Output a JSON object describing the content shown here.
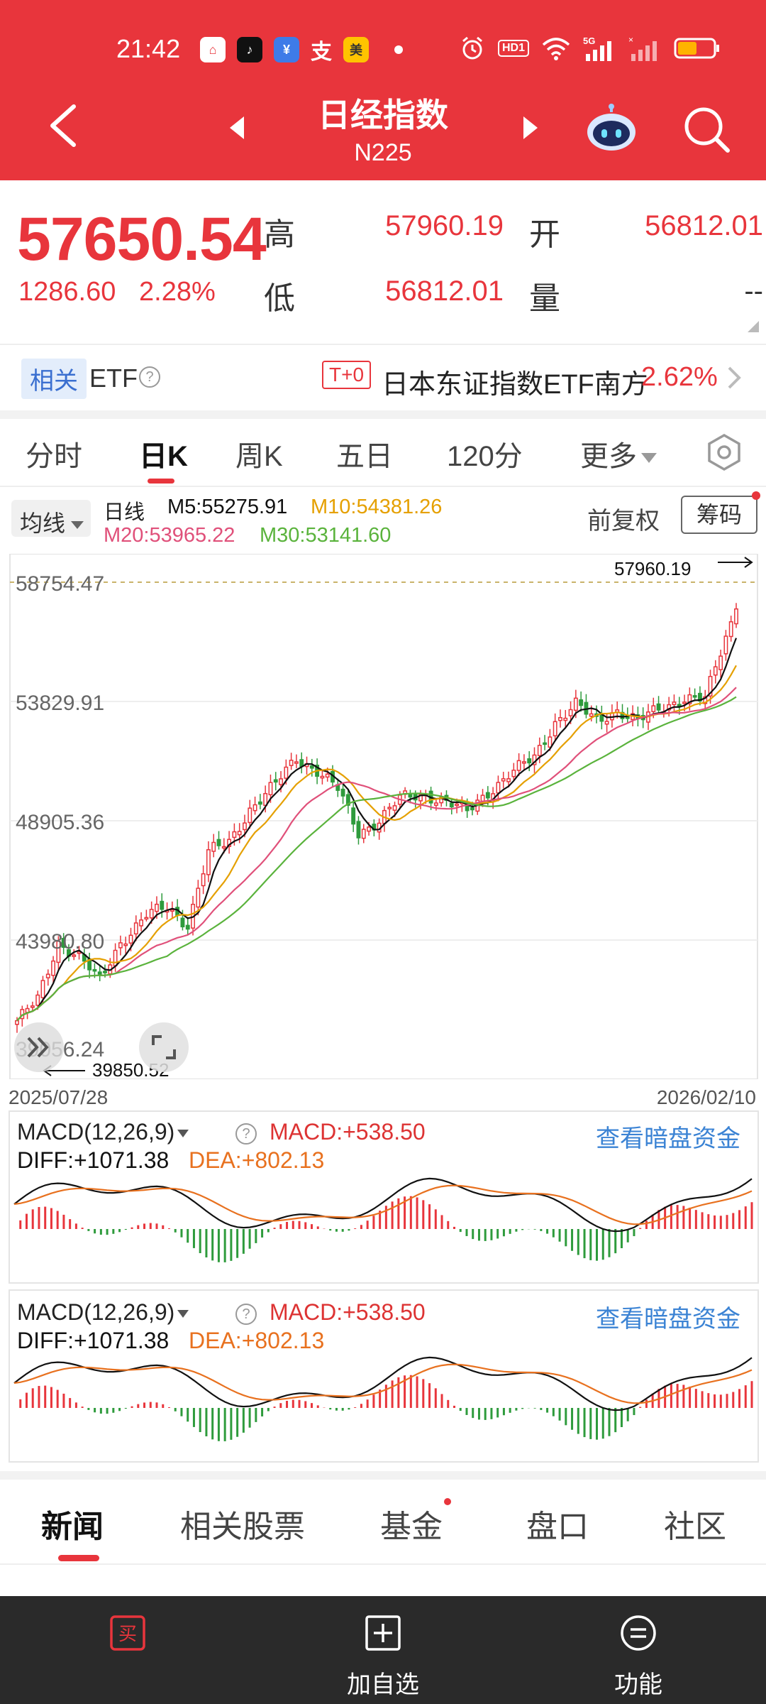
{
  "status": {
    "time": "21:42",
    "notif_apps": [
      "home-app",
      "tiktok",
      "fund-app",
      "alipay",
      "meituan"
    ],
    "hd_label": "HD1",
    "net_label": "5G"
  },
  "header": {
    "title": "日经指数",
    "subtitle": "N225"
  },
  "quote": {
    "price": "57650.54",
    "change": "1286.60",
    "change_pct": "2.28%",
    "high_label": "高",
    "high": "57960.19",
    "low_label": "低",
    "low": "56812.01",
    "open_label": "开",
    "open": "56812.01",
    "volume_label": "量",
    "volume": "--",
    "accent": "#e8353c"
  },
  "etf": {
    "tag": "相关",
    "word": "ETF",
    "t0": "T+0",
    "name": "日本东证指数ETF南方",
    "pct": "2.62%"
  },
  "tabs": {
    "items": [
      "分时",
      "日K",
      "周K",
      "五日",
      "120分",
      "更多"
    ],
    "active": "日K"
  },
  "indicators": {
    "ma_select": "均线",
    "period": "日线",
    "m5": "M5:55275.91",
    "m10": "M10:54381.26",
    "m20": "M20:53965.22",
    "m30": "M30:53141.60",
    "adjust": "前复权",
    "chips": "筹码",
    "colors": {
      "m5": "#111111",
      "m10": "#e5a000",
      "m20": "#e0507a",
      "m30": "#5ab33c"
    }
  },
  "chart_data": {
    "type": "candlestick",
    "y_ticks": [
      "58754.47",
      "53829.91",
      "48905.36",
      "43980.80",
      "39056.24"
    ],
    "ylim": [
      39056.24,
      58754.47
    ],
    "high_marker": "57960.19",
    "low_marker": "39850.52",
    "x_start": "2025/07/28",
    "x_end": "2026/02/10",
    "close_anchor_x": [
      0,
      4,
      8,
      12,
      16,
      20,
      25,
      29,
      33,
      37,
      41,
      45,
      50,
      54,
      58,
      62,
      66,
      70,
      74,
      79,
      83,
      87,
      91,
      95,
      100,
      104,
      108,
      112,
      116,
      120,
      124,
      129,
      133,
      137,
      139
    ],
    "close_anchor_y": [
      40650,
      41500,
      43900,
      43300,
      42300,
      43900,
      45000,
      45300,
      44650,
      47600,
      48000,
      49400,
      50400,
      51500,
      51000,
      50200,
      48400,
      48950,
      49800,
      50000,
      49700,
      49250,
      50100,
      50800,
      51500,
      53000,
      53700,
      53000,
      53500,
      53000,
      53500,
      54000,
      53900,
      56500,
      57650
    ]
  },
  "date_axis": {
    "start": "2025/07/28",
    "end": "2026/02/10"
  },
  "macd_panels": [
    {
      "select": "MACD(12,26,9)",
      "macd": "MACD:+538.50",
      "diff": "DIFF:+1071.38",
      "dea": "DEA:+802.13",
      "link": "查看暗盘资金"
    },
    {
      "select": "MACD(12,26,9)",
      "macd": "MACD:+538.50",
      "diff": "DIFF:+1071.38",
      "dea": "DEA:+802.13",
      "link": "查看暗盘资金"
    }
  ],
  "news_tabs": {
    "items": [
      "新闻",
      "相关股票",
      "基金",
      "盘口",
      "社区"
    ],
    "active": "新闻"
  },
  "bottom_bar": {
    "buy_icon_text": "买",
    "add_label": "加自选",
    "func_label": "功能"
  }
}
